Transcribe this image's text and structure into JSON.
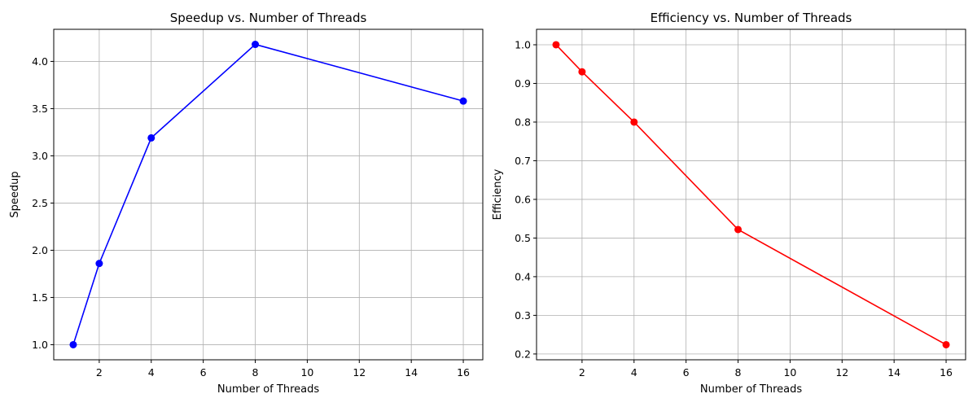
{
  "chart_data": [
    {
      "type": "line",
      "title": "Speedup vs. Number of Threads",
      "xlabel": "Number of Threads",
      "ylabel": "Speedup",
      "x": [
        1,
        2,
        4,
        8,
        16
      ],
      "series": [
        {
          "values": [
            1.0,
            1.86,
            3.19,
            4.18,
            3.58
          ],
          "color": "#0000ff",
          "marker": "circle"
        }
      ],
      "xlim": [
        0.25,
        16.75
      ],
      "ylim": [
        0.84,
        4.34
      ],
      "xticks": [
        "2",
        "4",
        "6",
        "8",
        "10",
        "12",
        "14",
        "16"
      ],
      "yticks": [
        "1.0",
        "1.5",
        "2.0",
        "2.5",
        "3.0",
        "3.5",
        "4.0"
      ],
      "grid": true
    },
    {
      "type": "line",
      "title": "Efficiency vs. Number of Threads",
      "xlabel": "Number of Threads",
      "ylabel": "Efficiency",
      "x": [
        1,
        2,
        4,
        8,
        16
      ],
      "series": [
        {
          "values": [
            1.0,
            0.93,
            0.8,
            0.522,
            0.224
          ],
          "color": "#ff0000",
          "marker": "circle"
        }
      ],
      "xlim": [
        0.25,
        16.75
      ],
      "ylim": [
        0.185,
        1.04
      ],
      "xticks": [
        "2",
        "4",
        "6",
        "8",
        "10",
        "12",
        "14",
        "16"
      ],
      "yticks": [
        "0.2",
        "0.3",
        "0.4",
        "0.5",
        "0.6",
        "0.7",
        "0.8",
        "0.9",
        "1.0"
      ],
      "grid": true
    }
  ]
}
